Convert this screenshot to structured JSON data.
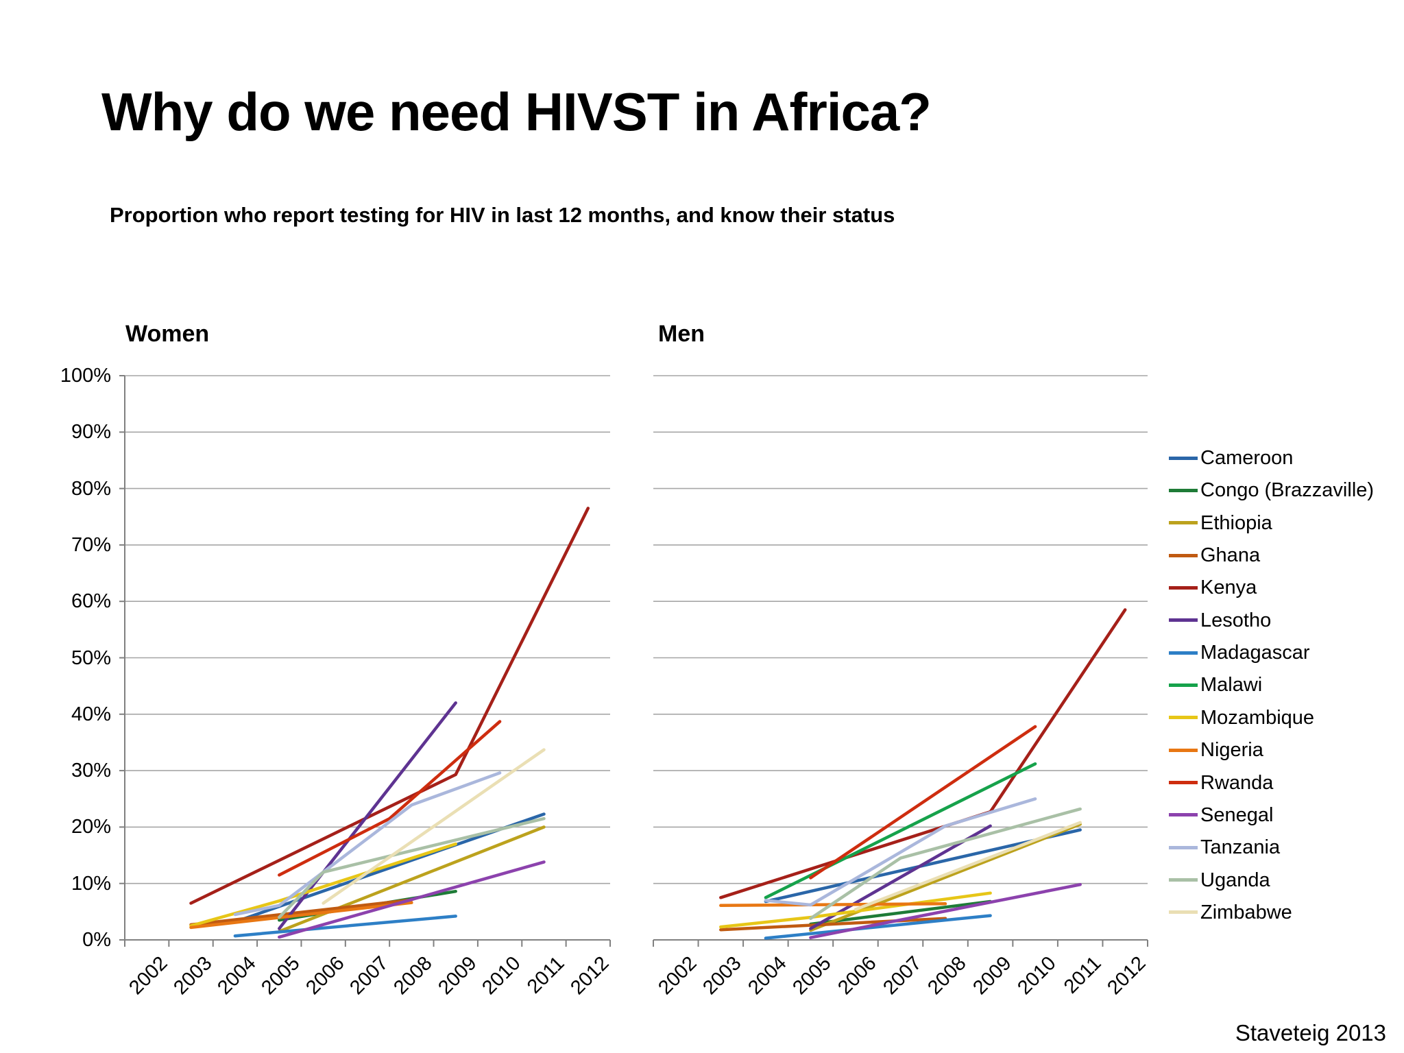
{
  "slide": {
    "title": "Why do we need HIVST in Africa?",
    "subtitle": "Proportion who report testing for HIV in last 12 months, and know their status",
    "credit": "Staveteig 2013"
  },
  "chart_data": {
    "type": "line",
    "grid": true,
    "legend_position": "right",
    "ylim": [
      0,
      100
    ],
    "ytick_step": 10,
    "ytick_labels": [
      "0%",
      "10%",
      "20%",
      "30%",
      "40%",
      "50%",
      "60%",
      "70%",
      "80%",
      "90%",
      "100%"
    ],
    "xtick_labels": [
      "2002",
      "2003",
      "2004",
      "2005",
      "2006",
      "2007",
      "2008",
      "2009",
      "2010",
      "2011",
      "2012"
    ],
    "countries": [
      {
        "name": "Cameroon",
        "color": "#2A66A8"
      },
      {
        "name": "Congo (Brazzaville)",
        "color": "#1E7B37"
      },
      {
        "name": "Ethiopia",
        "color": "#BCA21D"
      },
      {
        "name": "Ghana",
        "color": "#C05A11"
      },
      {
        "name": "Kenya",
        "color": "#A52019"
      },
      {
        "name": "Lesotho",
        "color": "#5E3391"
      },
      {
        "name": "Madagascar",
        "color": "#2D7FC6"
      },
      {
        "name": "Malawi",
        "color": "#16A24B"
      },
      {
        "name": "Mozambique",
        "color": "#E7C617"
      },
      {
        "name": "Nigeria",
        "color": "#E87713"
      },
      {
        "name": "Rwanda",
        "color": "#CE2D0F"
      },
      {
        "name": "Senegal",
        "color": "#8C42AD"
      },
      {
        "name": "Tanzania",
        "color": "#AAB7DC"
      },
      {
        "name": "Uganda",
        "color": "#A9C0A6"
      },
      {
        "name": "Zimbabwe",
        "color": "#EADFB4"
      }
    ],
    "panels": [
      {
        "title": "Women",
        "series": [
          {
            "country": "Cameroon",
            "points": [
              [
                2004,
                3.2
              ],
              [
                2011,
                22.3
              ]
            ]
          },
          {
            "country": "Congo (Brazzaville)",
            "points": [
              [
                2005,
                3.5
              ],
              [
                2009,
                8.6
              ]
            ]
          },
          {
            "country": "Ethiopia",
            "points": [
              [
                2005,
                1.5
              ],
              [
                2011,
                20.0
              ]
            ]
          },
          {
            "country": "Ghana",
            "points": [
              [
                2003,
                2.7
              ],
              [
                2008,
                7.1
              ]
            ]
          },
          {
            "country": "Kenya",
            "points": [
              [
                2003,
                6.5
              ],
              [
                2009,
                29.3
              ],
              [
                2012,
                76.5
              ]
            ]
          },
          {
            "country": "Lesotho",
            "points": [
              [
                2005,
                2.0
              ],
              [
                2009,
                42.0
              ]
            ]
          },
          {
            "country": "Madagascar",
            "points": [
              [
                2004,
                0.7
              ],
              [
                2009,
                4.2
              ]
            ]
          },
          {
            "country": "Mozambique",
            "points": [
              [
                2003,
                2.5
              ],
              [
                2005,
                6.9
              ],
              [
                2009,
                17.0
              ]
            ]
          },
          {
            "country": "Nigeria",
            "points": [
              [
                2003,
                2.2
              ],
              [
                2008,
                6.6
              ]
            ]
          },
          {
            "country": "Rwanda",
            "points": [
              [
                2005,
                11.5
              ],
              [
                2007.5,
                21.5
              ],
              [
                2010,
                38.7
              ]
            ]
          },
          {
            "country": "Senegal",
            "points": [
              [
                2005,
                0.5
              ],
              [
                2011,
                13.8
              ]
            ]
          },
          {
            "country": "Tanzania",
            "points": [
              [
                2004,
                4.5
              ],
              [
                2005,
                6.1
              ],
              [
                2008,
                23.9
              ],
              [
                2010,
                29.6
              ]
            ]
          },
          {
            "country": "Uganda",
            "points": [
              [
                2005,
                4.0
              ],
              [
                2006,
                12.0
              ],
              [
                2011,
                21.5
              ]
            ]
          },
          {
            "country": "Zimbabwe",
            "points": [
              [
                2006,
                6.5
              ],
              [
                2011,
                33.7
              ]
            ]
          }
        ]
      },
      {
        "title": "Men",
        "series": [
          {
            "country": "Cameroon",
            "points": [
              [
                2004,
                6.8
              ],
              [
                2011,
                19.5
              ]
            ]
          },
          {
            "country": "Congo (Brazzaville)",
            "points": [
              [
                2005,
                2.8
              ],
              [
                2009,
                6.8
              ]
            ]
          },
          {
            "country": "Ethiopia",
            "points": [
              [
                2005,
                1.7
              ],
              [
                2011,
                20.5
              ]
            ]
          },
          {
            "country": "Ghana",
            "points": [
              [
                2003,
                1.8
              ],
              [
                2008,
                3.8
              ]
            ]
          },
          {
            "country": "Kenya",
            "points": [
              [
                2003,
                7.5
              ],
              [
                2009,
                22.7
              ],
              [
                2012,
                58.5
              ]
            ]
          },
          {
            "country": "Lesotho",
            "points": [
              [
                2005,
                2.0
              ],
              [
                2009,
                20.2
              ]
            ]
          },
          {
            "country": "Madagascar",
            "points": [
              [
                2004,
                0.3
              ],
              [
                2009,
                4.3
              ]
            ]
          },
          {
            "country": "Malawi",
            "points": [
              [
                2004,
                7.5
              ],
              [
                2010,
                31.2
              ]
            ]
          },
          {
            "country": "Mozambique",
            "points": [
              [
                2003,
                2.3
              ],
              [
                2005,
                4.0
              ],
              [
                2009,
                8.3
              ]
            ]
          },
          {
            "country": "Nigeria",
            "points": [
              [
                2003,
                6.1
              ],
              [
                2008,
                6.4
              ]
            ]
          },
          {
            "country": "Rwanda",
            "points": [
              [
                2005,
                11.0
              ],
              [
                2010,
                37.8
              ]
            ]
          },
          {
            "country": "Senegal",
            "points": [
              [
                2005,
                0.4
              ],
              [
                2011,
                9.8
              ]
            ]
          },
          {
            "country": "Tanzania",
            "points": [
              [
                2004,
                7.0
              ],
              [
                2005,
                6.2
              ],
              [
                2008,
                20.2
              ],
              [
                2010,
                25.0
              ]
            ]
          },
          {
            "country": "Uganda",
            "points": [
              [
                2005,
                3.8
              ],
              [
                2007,
                14.5
              ],
              [
                2011,
                23.2
              ]
            ]
          },
          {
            "country": "Zimbabwe",
            "points": [
              [
                2006,
                5.4
              ],
              [
                2011,
                20.8
              ]
            ]
          }
        ]
      }
    ]
  }
}
